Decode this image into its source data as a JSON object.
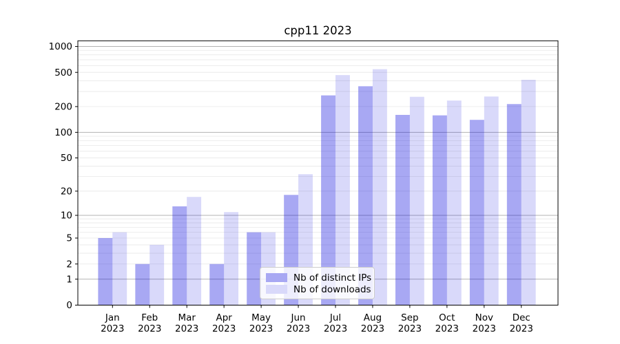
{
  "chart_data": {
    "type": "bar",
    "title": "cpp11 2023",
    "categories": [
      "Jan",
      "Feb",
      "Mar",
      "Apr",
      "May",
      "Jun",
      "Jul",
      "Aug",
      "Sep",
      "Oct",
      "Nov",
      "Dec"
    ],
    "year_label": "2023",
    "series": [
      {
        "name": "Nb of distinct IPs",
        "color": "#a8a8f3",
        "fill": "#0000dc",
        "fill_opacity": 0.34,
        "values": [
          5,
          2,
          13,
          2,
          6,
          18,
          270,
          345,
          160,
          158,
          140,
          214
        ]
      },
      {
        "name": "Nb of downloads",
        "color": "#d9d9fa",
        "fill": "#0000dc",
        "fill_opacity": 0.15,
        "values": [
          6,
          4,
          17,
          11,
          6,
          32,
          465,
          545,
          260,
          235,
          262,
          410
        ]
      }
    ],
    "yticks": [
      0,
      1,
      2,
      5,
      10,
      20,
      50,
      100,
      200,
      500,
      1000
    ],
    "scale": "log10(1+x)",
    "ylim": [
      0,
      1166
    ],
    "grid": "major dark at decades, minor light at 2-9 per decade",
    "legend_position": "lower center",
    "major_grid_color": "#b3b3b3",
    "minor_grid_color": "#e8e8e8",
    "axis_color": "#000000"
  }
}
